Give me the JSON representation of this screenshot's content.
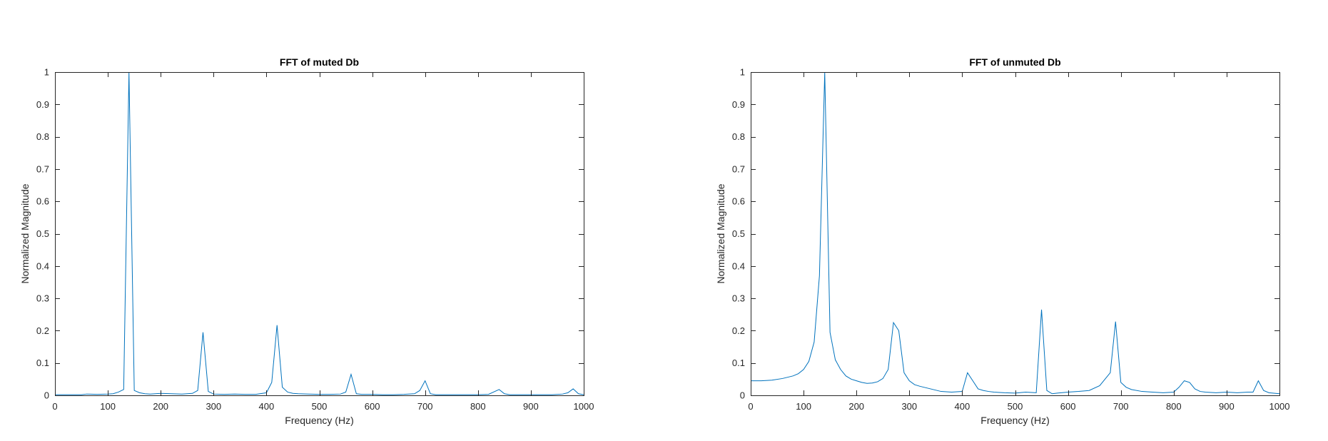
{
  "chart_data": [
    {
      "type": "line",
      "title": "FFT of muted Db",
      "xlabel": "Frequency (Hz)",
      "ylabel": "Normalized Magnitude",
      "xlim": [
        0,
        1000
      ],
      "ylim": [
        0,
        1
      ],
      "xticks": [
        0,
        100,
        200,
        300,
        400,
        500,
        600,
        700,
        800,
        900,
        1000
      ],
      "yticks": [
        0,
        0.1,
        0.2,
        0.3,
        0.4,
        0.5,
        0.6,
        0.7,
        0.8,
        0.9,
        1
      ],
      "line_color": "#0072BD",
      "grid": false,
      "series": [
        {
          "x": [
            0,
            50,
            60,
            80,
            100,
            110,
            120,
            130,
            140,
            150,
            160,
            170,
            180,
            200,
            220,
            240,
            260,
            270,
            280,
            290,
            300,
            320,
            340,
            360,
            380,
            400,
            410,
            420,
            430,
            440,
            450,
            460,
            480,
            500,
            520,
            540,
            550,
            560,
            570,
            580,
            600,
            620,
            640,
            660,
            680,
            690,
            700,
            710,
            720,
            740,
            760,
            780,
            800,
            820,
            840,
            850,
            860,
            880,
            900,
            920,
            940,
            960,
            970,
            980,
            990,
            1000
          ],
          "y": [
            0.002,
            0.002,
            0.004,
            0.003,
            0.004,
            0.005,
            0.01,
            0.018,
            1.0,
            0.015,
            0.008,
            0.005,
            0.004,
            0.006,
            0.005,
            0.004,
            0.006,
            0.015,
            0.195,
            0.012,
            0.004,
            0.003,
            0.004,
            0.003,
            0.003,
            0.008,
            0.04,
            0.217,
            0.025,
            0.01,
            0.006,
            0.005,
            0.004,
            0.003,
            0.003,
            0.004,
            0.01,
            0.065,
            0.005,
            0.003,
            0.003,
            0.002,
            0.002,
            0.003,
            0.005,
            0.015,
            0.045,
            0.005,
            0.002,
            0.002,
            0.002,
            0.002,
            0.002,
            0.003,
            0.018,
            0.005,
            0.002,
            0.002,
            0.002,
            0.002,
            0.002,
            0.004,
            0.008,
            0.02,
            0.005,
            0.002
          ]
        }
      ]
    },
    {
      "type": "line",
      "title": "FFT of unmuted Db",
      "xlabel": "Frequency (Hz)",
      "ylabel": "Normalized Magnitude",
      "xlim": [
        0,
        1000
      ],
      "ylim": [
        0,
        1
      ],
      "xticks": [
        0,
        100,
        200,
        300,
        400,
        500,
        600,
        700,
        800,
        900,
        1000
      ],
      "yticks": [
        0,
        0.1,
        0.2,
        0.3,
        0.4,
        0.5,
        0.6,
        0.7,
        0.8,
        0.9,
        1
      ],
      "line_color": "#0072BD",
      "grid": false,
      "series": [
        {
          "x": [
            0,
            20,
            40,
            60,
            80,
            90,
            100,
            110,
            120,
            130,
            140,
            150,
            160,
            170,
            180,
            190,
            200,
            210,
            220,
            230,
            240,
            250,
            260,
            270,
            280,
            290,
            300,
            310,
            320,
            340,
            360,
            380,
            400,
            410,
            420,
            430,
            440,
            450,
            460,
            480,
            500,
            520,
            540,
            550,
            560,
            570,
            580,
            600,
            620,
            640,
            660,
            680,
            690,
            700,
            710,
            720,
            740,
            760,
            780,
            800,
            810,
            820,
            830,
            840,
            850,
            860,
            880,
            900,
            920,
            940,
            950,
            960,
            970,
            980,
            1000
          ],
          "y": [
            0.045,
            0.045,
            0.047,
            0.052,
            0.06,
            0.067,
            0.08,
            0.105,
            0.165,
            0.37,
            1.0,
            0.195,
            0.11,
            0.08,
            0.06,
            0.05,
            0.045,
            0.04,
            0.037,
            0.038,
            0.042,
            0.052,
            0.08,
            0.225,
            0.2,
            0.07,
            0.045,
            0.033,
            0.028,
            0.02,
            0.012,
            0.01,
            0.012,
            0.07,
            0.045,
            0.02,
            0.015,
            0.012,
            0.01,
            0.008,
            0.007,
            0.01,
            0.008,
            0.265,
            0.015,
            0.005,
            0.007,
            0.01,
            0.012,
            0.015,
            0.03,
            0.07,
            0.228,
            0.04,
            0.025,
            0.018,
            0.012,
            0.01,
            0.008,
            0.01,
            0.025,
            0.045,
            0.04,
            0.02,
            0.012,
            0.01,
            0.008,
            0.01,
            0.008,
            0.01,
            0.01,
            0.045,
            0.015,
            0.008,
            0.005
          ]
        }
      ]
    }
  ]
}
